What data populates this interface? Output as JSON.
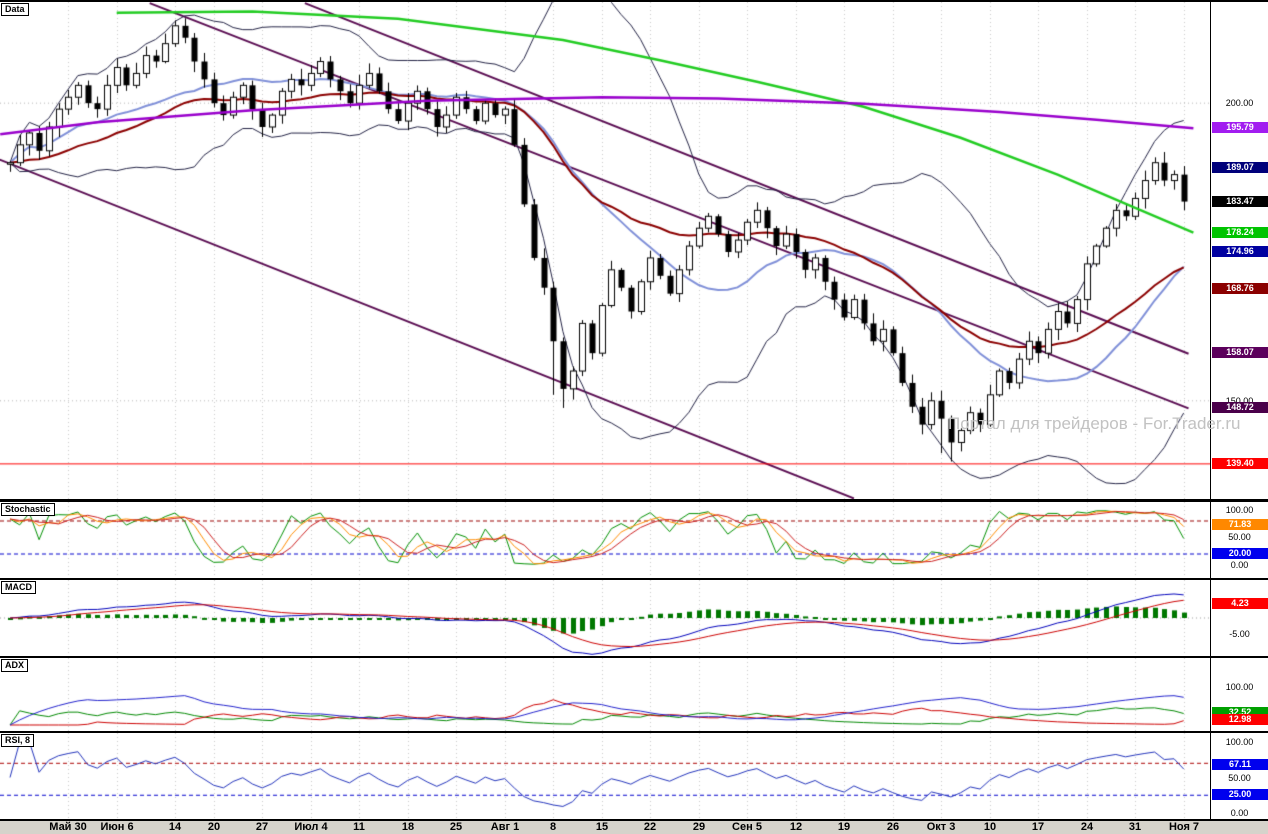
{
  "watermark": {
    "text": "Портал для трейдеров - For.Trader.ru"
  },
  "panels": {
    "main": {
      "label": "Data"
    },
    "stochastic": {
      "label": "Stochastic"
    },
    "macd": {
      "label": "MACD"
    },
    "adx": {
      "label": "ADX"
    },
    "rsi": {
      "label": "RSI, 8"
    }
  },
  "axis": {
    "main": [
      {
        "text": "200.00",
        "value": 200,
        "style": "plain"
      },
      {
        "text": "195.79",
        "value": 195.79,
        "style": "badge",
        "bg": "#a21cf0"
      },
      {
        "text": "189.07",
        "value": 189.07,
        "style": "badge",
        "bg": "#00007a"
      },
      {
        "text": "183.47",
        "value": 183.47,
        "style": "badge",
        "bg": "#000000"
      },
      {
        "text": "178.24",
        "value": 178.24,
        "style": "badge",
        "bg": "#00c400"
      },
      {
        "text": "174.96",
        "value": 174.96,
        "style": "badge",
        "bg": "#0000a0"
      },
      {
        "text": "168.76",
        "value": 168.76,
        "style": "badge",
        "bg": "#8b0000"
      },
      {
        "text": "158.07",
        "value": 158.07,
        "style": "badge",
        "bg": "#5c005c"
      },
      {
        "text": "150.00",
        "value": 150,
        "style": "plain"
      },
      {
        "text": "148.72",
        "value": 148.72,
        "style": "badge",
        "bg": "#4a004a"
      },
      {
        "text": "139.40",
        "value": 139.4,
        "style": "badge",
        "bg": "#ff0000"
      }
    ],
    "stochastic": [
      {
        "text": "100.00",
        "value": 100,
        "style": "plain"
      },
      {
        "text": "71.83",
        "value": 71.83,
        "style": "badge",
        "bg": "#ff8800"
      },
      {
        "text": "50.00",
        "value": 50,
        "style": "plain"
      },
      {
        "text": "20.00",
        "value": 20,
        "style": "badge",
        "bg": "#0000ee"
      },
      {
        "text": "0.00",
        "value": 0,
        "style": "plain"
      }
    ],
    "macd": [
      {
        "text": "4.23",
        "value": 4.23,
        "style": "badge",
        "bg": "#ff0000"
      },
      {
        "text": "-5.00",
        "value": -5,
        "style": "plain"
      }
    ],
    "adx": [
      {
        "text": "100.00",
        "value": 100,
        "style": "plain"
      },
      {
        "text": "32.52",
        "value": 32.52,
        "style": "badge",
        "bg": "#00a000"
      },
      {
        "text": "12.98",
        "value": 12.98,
        "style": "badge",
        "bg": "#ff0000"
      }
    ],
    "rsi": [
      {
        "text": "100.00",
        "value": 100,
        "style": "plain"
      },
      {
        "text": "67.11",
        "value": 67.11,
        "style": "badge",
        "bg": "#0000ee"
      },
      {
        "text": "50.00",
        "value": 50,
        "style": "plain"
      },
      {
        "text": "25.00",
        "value": 25,
        "style": "badge",
        "bg": "#0000ee"
      },
      {
        "text": "0.00",
        "value": 0,
        "style": "plain"
      }
    ]
  },
  "time_axis": {
    "ticks": [
      {
        "label": "Май 30",
        "index": 6
      },
      {
        "label": "Июн 6",
        "index": 11
      },
      {
        "label": "14",
        "index": 17
      },
      {
        "label": "20",
        "index": 21
      },
      {
        "label": "27",
        "index": 26
      },
      {
        "label": "Июл 4",
        "index": 31
      },
      {
        "label": "11",
        "index": 36
      },
      {
        "label": "18",
        "index": 41
      },
      {
        "label": "25",
        "index": 46
      },
      {
        "label": "Авг 1",
        "index": 51
      },
      {
        "label": "8",
        "index": 56
      },
      {
        "label": "15",
        "index": 61
      },
      {
        "label": "22",
        "index": 66
      },
      {
        "label": "29",
        "index": 71
      },
      {
        "label": "Сен 5",
        "index": 76
      },
      {
        "label": "12",
        "index": 81
      },
      {
        "label": "19",
        "index": 86
      },
      {
        "label": "26",
        "index": 91
      },
      {
        "label": "Окт 3",
        "index": 96
      },
      {
        "label": "10",
        "index": 101
      },
      {
        "label": "17",
        "index": 106
      },
      {
        "label": "24",
        "index": 111
      },
      {
        "label": "31",
        "index": 116
      },
      {
        "label": "Ноя 7",
        "index": 121
      }
    ]
  },
  "chart_data": [
    {
      "panel": "main",
      "type": "candlestick",
      "title": "Data",
      "ylim": [
        133.5,
        217
      ],
      "last_price": 183.47,
      "closes": [
        190,
        193,
        195,
        192,
        196,
        199,
        201,
        203,
        200,
        199,
        203,
        206,
        203,
        205,
        208,
        207,
        210,
        213,
        211,
        207,
        204,
        200,
        198,
        201,
        203,
        199,
        196,
        198,
        202,
        204,
        203,
        205,
        207,
        204,
        202,
        200,
        203,
        205,
        202,
        199,
        197,
        200,
        202,
        199,
        196,
        198,
        201,
        199,
        197,
        200,
        198,
        199,
        193,
        183,
        174,
        169,
        160,
        152,
        155,
        163,
        158,
        166,
        172,
        169,
        165,
        170,
        174,
        171,
        168,
        172,
        176,
        179,
        181,
        178,
        175,
        177,
        180,
        182,
        179,
        176,
        178,
        175,
        172,
        174,
        170,
        167,
        164,
        167,
        163,
        160,
        162,
        158,
        153,
        149,
        146,
        150,
        147,
        143,
        145,
        148,
        146,
        151,
        155,
        153,
        157,
        160,
        158,
        162,
        165,
        163,
        167,
        173,
        176,
        179,
        182,
        181,
        184,
        187,
        190,
        187,
        188,
        183.47
      ],
      "high_overrides": {
        "17": 213.9
      },
      "low_overrides": {
        "56": 151.0,
        "57": 148.8,
        "58": 150.2,
        "96": 141.2,
        "97": 139.8,
        "98": 141.5
      },
      "overlays": {
        "bollinger": {
          "period": 20,
          "dev": 2,
          "color": "#222244"
        },
        "sma": {
          "period": 20,
          "color": "#8090d8",
          "last_value": 174.96
        },
        "ema": {
          "period": 30,
          "color": "#8b0000",
          "last_value": 168.76
        },
        "ma_green": {
          "color": "#22cc22",
          "last_value": 178.24,
          "points": [
            [
              11,
              215.2
            ],
            [
              25,
              215.4
            ],
            [
              40,
              214.2
            ],
            [
              57,
              210.6
            ],
            [
              67,
              207.2
            ],
            [
              77,
              203.6
            ],
            [
              88,
              199.4
            ],
            [
              98,
              194.2
            ],
            [
              108,
              188.0
            ],
            [
              116,
              182.4
            ],
            [
              122,
              178.24
            ]
          ]
        },
        "ma_purple": {
          "color": "#9900cc",
          "last_value": 195.79,
          "points": [
            [
              -1,
              194.8
            ],
            [
              9,
              196.8
            ],
            [
              25,
              198.8
            ],
            [
              43,
              200.4
            ],
            [
              61,
              201.0
            ],
            [
              73,
              200.8
            ],
            [
              88,
              199.9
            ],
            [
              102,
              198.5
            ],
            [
              112,
              197.2
            ],
            [
              122,
              195.79
            ]
          ]
        }
      },
      "trendlines": [
        {
          "i1": -1.5,
          "v1": 190.8,
          "i2": 87,
          "v2": 133.6,
          "color": "#5a0d52"
        },
        {
          "i1": 14.4,
          "v1": 216.8,
          "i2": 121.5,
          "v2": 148.72,
          "color": "#5a0d52"
        },
        {
          "i1": 30.4,
          "v1": 216.8,
          "i2": 121.5,
          "v2": 157.9,
          "color": "#5a0d52"
        }
      ],
      "hlines": [
        {
          "value": 139.4,
          "color": "#ff0000"
        }
      ],
      "grid_values": [
        200,
        150
      ]
    },
    {
      "panel": "stochastic",
      "type": "line",
      "indicator": "stochastic",
      "ylim": [
        -23.6,
        114.5
      ],
      "levels": [
        {
          "value": 80,
          "color": "#990000"
        },
        {
          "value": 20,
          "color": "#0000cc"
        }
      ],
      "colors": [
        "#009000",
        "#ff8c00",
        "#cc2020"
      ],
      "current": 71.83
    },
    {
      "panel": "macd",
      "type": "macd",
      "indicator": "macd",
      "ylim": [
        -11.9,
        11.9
      ],
      "levels": [
        {
          "value": 0,
          "color": "#999999"
        }
      ],
      "colors": {
        "macd": "#0000bb",
        "signal": "#cc0000",
        "hist": "#007700"
      },
      "current": 4.23
    },
    {
      "panel": "adx",
      "type": "line",
      "indicator": "adx",
      "ylim": [
        -15.8,
        176.3
      ],
      "levels": [],
      "colors": {
        "plus_di": "#008800",
        "minus_di": "#cc0000",
        "adx": "#2020cc"
      },
      "current_plus_di": 32.52,
      "current_minus_di": 12.98
    },
    {
      "panel": "rsi",
      "type": "line",
      "indicator": "rsi",
      "period": 8,
      "ylim": [
        -8.45,
        112.7
      ],
      "levels": [
        {
          "value": 70,
          "color": "#aa0000"
        },
        {
          "value": 25,
          "color": "#0000cc"
        }
      ],
      "colors": {
        "rsi": "#2233bb"
      },
      "current": 67.11
    }
  ]
}
